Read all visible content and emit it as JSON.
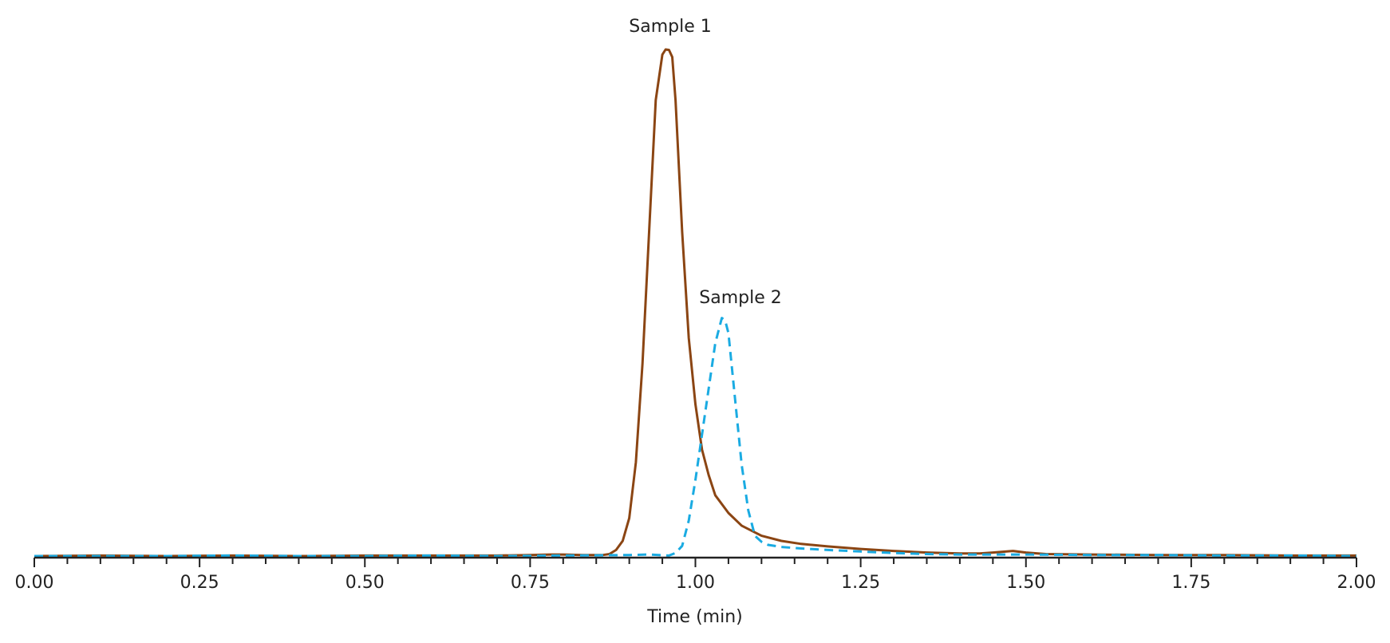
{
  "chart_data": {
    "type": "line",
    "title": "",
    "xlabel": "Time (min)",
    "ylabel": "",
    "xlim": [
      0,
      2.0
    ],
    "ylim": [
      0,
      1.0
    ],
    "grid": false,
    "legend": "none (direct peak labels)",
    "x_ticks": [
      "0.00",
      "0.25",
      "0.50",
      "0.75",
      "1.00",
      "1.25",
      "1.50",
      "1.75",
      "2.00"
    ],
    "x_tick_values": [
      0,
      0.25,
      0.5,
      0.75,
      1.0,
      1.25,
      1.5,
      1.75,
      2.0
    ],
    "minor_tick_step": 0.05,
    "annotations": [
      {
        "text": "Sample 1",
        "x": 0.96,
        "y": 1.0
      },
      {
        "text": "Sample 2",
        "x": 1.04,
        "y": 0.47
      }
    ],
    "series": [
      {
        "name": "Sample 1",
        "color": "#8B4513",
        "style": "solid",
        "x": [
          0.0,
          0.1,
          0.2,
          0.3,
          0.4,
          0.5,
          0.6,
          0.7,
          0.75,
          0.78,
          0.8,
          0.83,
          0.86,
          0.87,
          0.88,
          0.89,
          0.9,
          0.91,
          0.92,
          0.93,
          0.94,
          0.95,
          0.955,
          0.96,
          0.965,
          0.97,
          0.98,
          0.99,
          1.0,
          1.01,
          1.02,
          1.03,
          1.05,
          1.07,
          1.1,
          1.13,
          1.16,
          1.2,
          1.25,
          1.3,
          1.35,
          1.4,
          1.43,
          1.45,
          1.48,
          1.5,
          1.53,
          1.6,
          1.7,
          1.8,
          1.9,
          2.0
        ],
        "y": [
          0.0,
          0.001,
          0.0,
          0.001,
          0.0,
          0.001,
          0.001,
          0.001,
          0.002,
          0.003,
          0.003,
          0.002,
          0.002,
          0.004,
          0.012,
          0.03,
          0.075,
          0.185,
          0.38,
          0.64,
          0.9,
          0.99,
          1.0,
          0.999,
          0.985,
          0.9,
          0.64,
          0.43,
          0.3,
          0.21,
          0.16,
          0.12,
          0.085,
          0.06,
          0.04,
          0.03,
          0.024,
          0.019,
          0.014,
          0.01,
          0.007,
          0.005,
          0.005,
          0.007,
          0.01,
          0.007,
          0.004,
          0.003,
          0.002,
          0.002,
          0.001,
          0.001
        ]
      },
      {
        "name": "Sample 2",
        "color": "#1AABE2",
        "style": "dashed",
        "x": [
          0.0,
          0.1,
          0.2,
          0.3,
          0.4,
          0.5,
          0.6,
          0.7,
          0.8,
          0.9,
          0.93,
          0.96,
          0.97,
          0.98,
          0.99,
          1.0,
          1.01,
          1.02,
          1.03,
          1.04,
          1.045,
          1.05,
          1.06,
          1.07,
          1.08,
          1.09,
          1.1,
          1.11,
          1.13,
          1.16,
          1.2,
          1.25,
          1.3,
          1.35,
          1.4,
          1.45,
          1.5,
          1.6,
          1.7,
          1.8,
          1.9,
          2.0
        ],
        "y": [
          0.0,
          0.0,
          0.0,
          0.001,
          0.0,
          0.0,
          0.001,
          0.0,
          0.001,
          0.002,
          0.003,
          0.001,
          0.006,
          0.02,
          0.07,
          0.15,
          0.24,
          0.33,
          0.42,
          0.47,
          0.465,
          0.44,
          0.31,
          0.18,
          0.09,
          0.04,
          0.028,
          0.022,
          0.018,
          0.015,
          0.012,
          0.009,
          0.006,
          0.004,
          0.003,
          0.003,
          0.003,
          0.002,
          0.002,
          0.001,
          0.001,
          0.0
        ]
      }
    ]
  },
  "labels": {
    "x_axis_title": "Time (min)",
    "sample1": "Sample 1",
    "sample2": "Sample 2"
  }
}
